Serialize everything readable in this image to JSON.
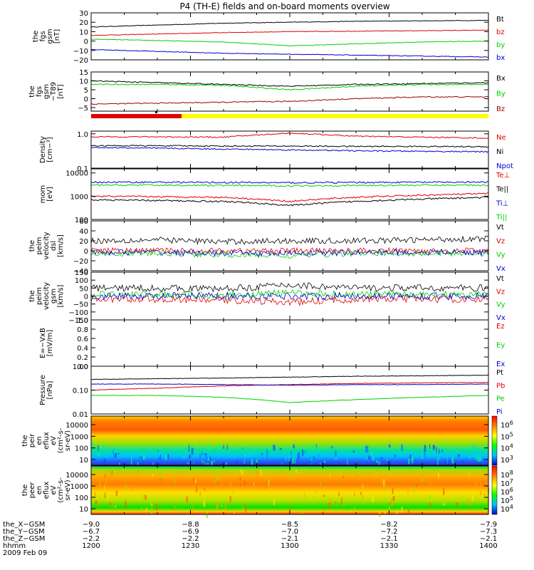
{
  "title": "P4 (TH-E) fields and on-board moments overview",
  "colors": {
    "black": "#000000",
    "red": "#e00000",
    "green": "#00d000",
    "blue": "#0000d0",
    "darkred": "#a00000",
    "yellow": "#ffff00"
  },
  "chart_data": [
    {
      "type": "line",
      "ylabel": [
        "the",
        "fgs",
        "gsm",
        "[nT]"
      ],
      "yticks": [
        "30",
        "20",
        "10",
        "0",
        "−10",
        "−20"
      ],
      "ylim": [
        -20,
        30
      ],
      "series": [
        {
          "name": "Bt",
          "color": "#000000",
          "values": [
            15,
            17,
            19,
            20,
            21,
            21.5,
            22
          ]
        },
        {
          "name": "bz",
          "color": "#e00000",
          "values": [
            6,
            7.5,
            9,
            10,
            10.5,
            11,
            11.5
          ]
        },
        {
          "name": "by",
          "color": "#00d000",
          "values": [
            2,
            0.5,
            -1,
            -5,
            -3,
            -1,
            0
          ]
        },
        {
          "name": "bx",
          "color": "#0000d0",
          "values": [
            -9,
            -11,
            -13,
            -14,
            -15,
            -16,
            -17
          ]
        }
      ]
    },
    {
      "type": "line",
      "ylabel": [
        "the",
        "fgs",
        "gsm",
        "−T89",
        "[nT]"
      ],
      "yticks": [
        "15",
        "10",
        "5",
        "0",
        "−5"
      ],
      "ylim": [
        -7,
        15
      ],
      "series": [
        {
          "name": "Bx",
          "color": "#000000",
          "values": [
            10,
            9,
            8,
            7,
            8,
            8.5,
            9
          ]
        },
        {
          "name": "By",
          "color": "#00d000",
          "values": [
            8,
            8,
            7.5,
            5,
            7,
            8,
            8
          ]
        },
        {
          "name": "Bz",
          "color": "#a00000",
          "values": [
            -3,
            -2.5,
            -2,
            -1.5,
            0,
            1,
            1
          ]
        }
      ]
    },
    {
      "type": "line",
      "scale": "log",
      "ylabel": [
        "Density",
        "[cm−³]"
      ],
      "yticks": [
        "1.0",
        "0.1"
      ],
      "ylim": [
        0.1,
        1.2
      ],
      "series": [
        {
          "name": "Ne",
          "color": "#e00000",
          "values": [
            0.82,
            0.82,
            0.8,
            1.05,
            0.85,
            0.8,
            0.75
          ]
        },
        {
          "name": "Ni",
          "color": "#000000",
          "values": [
            0.45,
            0.45,
            0.44,
            0.44,
            0.43,
            0.43,
            0.42
          ]
        },
        {
          "name": "Npot",
          "color": "#0000d0",
          "values": [
            0.4,
            0.38,
            0.36,
            0.34,
            0.32,
            0.31,
            0.3
          ]
        }
      ]
    },
    {
      "type": "line",
      "scale": "log",
      "ylabel": [
        "mom",
        "[eV]"
      ],
      "yticks": [
        "10000",
        "1000",
        "100"
      ],
      "ylim": [
        100,
        15000
      ],
      "series": [
        {
          "name": "Te⊥",
          "color": "#e00000",
          "values": [
            1000,
            950,
            900,
            600,
            900,
            1100,
            1300
          ]
        },
        {
          "name": "Te||",
          "color": "#000000",
          "values": [
            700,
            650,
            600,
            400,
            600,
            750,
            900
          ]
        },
        {
          "name": "Ti⊥",
          "color": "#0000d0",
          "values": [
            4000,
            4000,
            3900,
            3800,
            3900,
            4000,
            4000
          ]
        },
        {
          "name": "Ti||",
          "color": "#00d000",
          "values": [
            3000,
            3000,
            2900,
            2800,
            2900,
            3000,
            3000
          ]
        }
      ]
    },
    {
      "type": "line",
      "ylabel": [
        "the",
        "peim",
        "velocity",
        "dsl",
        "[km/s]"
      ],
      "yticks": [
        "60",
        "40",
        "20",
        "0",
        "−20",
        "−40"
      ],
      "ylim": [
        -40,
        60
      ],
      "series": [
        {
          "name": "Vt",
          "color": "#000000",
          "values": [
            20,
            22,
            18,
            20,
            20,
            22,
            25
          ]
        },
        {
          "name": "Vz",
          "color": "#e00000",
          "values": [
            0,
            0,
            0,
            0,
            0,
            0,
            0
          ]
        },
        {
          "name": "Vy",
          "color": "#00d000",
          "values": [
            -5,
            -5,
            -8,
            -10,
            -5,
            -5,
            -5
          ]
        },
        {
          "name": "Vx",
          "color": "#0000d0",
          "values": [
            -3,
            -3,
            -5,
            -5,
            -3,
            -3,
            -3
          ]
        }
      ]
    },
    {
      "type": "line",
      "ylabel": [
        "the",
        "peim",
        "velocity",
        "gsm",
        "[km/s]"
      ],
      "yticks": [
        "150",
        "100",
        "50",
        "0",
        "−50",
        "−100",
        "−150"
      ],
      "ylim": [
        -150,
        150
      ],
      "series": [
        {
          "name": "Vt",
          "color": "#000000",
          "values": [
            50,
            50,
            45,
            70,
            50,
            50,
            50
          ]
        },
        {
          "name": "Vz",
          "color": "#e00000",
          "values": [
            -20,
            -20,
            -25,
            -40,
            -20,
            -20,
            -20
          ]
        },
        {
          "name": "Vy",
          "color": "#00d000",
          "values": [
            10,
            10,
            5,
            20,
            10,
            10,
            10
          ]
        },
        {
          "name": "Vx",
          "color": "#0000d0",
          "values": [
            0,
            0,
            0,
            0,
            0,
            0,
            0
          ]
        }
      ]
    },
    {
      "type": "line",
      "ylabel": [
        "E=−VxB",
        "[mV/m]"
      ],
      "yticks": [
        "1.0",
        "0.8",
        "0.6",
        "0.4",
        "0.2",
        "0.0"
      ],
      "ylim": [
        0,
        1
      ],
      "series": [
        {
          "name": "Ez",
          "color": "#e00000",
          "values": []
        },
        {
          "name": "Ey",
          "color": "#00d000",
          "values": []
        },
        {
          "name": "Ex",
          "color": "#0000d0",
          "values": []
        }
      ]
    },
    {
      "type": "line",
      "scale": "log",
      "ylabel": [
        "Pressure",
        "[nPa]"
      ],
      "yticks": [
        "1.00",
        "0.10",
        "0.01"
      ],
      "ylim": [
        0.01,
        1
      ],
      "series": [
        {
          "name": "Pt",
          "color": "#000000",
          "values": [
            0.28,
            0.3,
            0.32,
            0.35,
            0.38,
            0.4,
            0.42
          ]
        },
        {
          "name": "Pb",
          "color": "#e00000",
          "values": [
            0.1,
            0.12,
            0.15,
            0.17,
            0.19,
            0.2,
            0.21
          ]
        },
        {
          "name": "Pe",
          "color": "#00d000",
          "values": [
            0.06,
            0.06,
            0.05,
            0.03,
            0.04,
            0.05,
            0.06
          ]
        },
        {
          "name": "Pi",
          "color": "#0000d0",
          "values": [
            0.18,
            0.18,
            0.17,
            0.16,
            0.17,
            0.17,
            0.18
          ]
        }
      ]
    },
    {
      "type": "heatmap",
      "ylabel": [
        "the",
        "peir",
        "en",
        "eflux",
        "eV",
        "(cm²-s-",
        "sr-eV)"
      ],
      "yticks": [
        "10000",
        "1000",
        "100",
        "10"
      ],
      "colorbar": {
        "ticks": [
          {
            "base": "10",
            "exp": "6"
          },
          {
            "base": "10",
            "exp": "5"
          },
          {
            "base": "10",
            "exp": "4"
          },
          {
            "base": "10",
            "exp": "3"
          }
        ]
      }
    },
    {
      "type": "heatmap",
      "ylabel": [
        "the",
        "peer",
        "en",
        "eflux",
        "eV",
        "(cm²-s-",
        "sr-eV)"
      ],
      "yticks": [
        "10000",
        "1000",
        "100",
        "10"
      ],
      "colorbar": {
        "ticks": [
          {
            "base": "10",
            "exp": "8"
          },
          {
            "base": "10",
            "exp": "7"
          },
          {
            "base": "10",
            "exp": "6"
          },
          {
            "base": "10",
            "exp": "5"
          },
          {
            "base": "10",
            "exp": "4"
          }
        ]
      }
    }
  ],
  "xaxis": {
    "rows": [
      {
        "label": "the_X−GSM",
        "values": [
          "−9.0",
          "−8.8",
          "−8.5",
          "−8.2",
          "−7.9"
        ]
      },
      {
        "label": "the_Y−GSM",
        "values": [
          "−6.7",
          "−6.9",
          "−7.0",
          "−7.2",
          "−7.3"
        ]
      },
      {
        "label": "the_Z−GSM",
        "values": [
          "−2.2",
          "−2.2",
          "−2.1",
          "−2.1",
          "−2.1"
        ]
      },
      {
        "label": "hhmm",
        "values": [
          "1200",
          "1230",
          "1300",
          "1330",
          "1400"
        ]
      }
    ],
    "date": "2009 Feb 09"
  }
}
